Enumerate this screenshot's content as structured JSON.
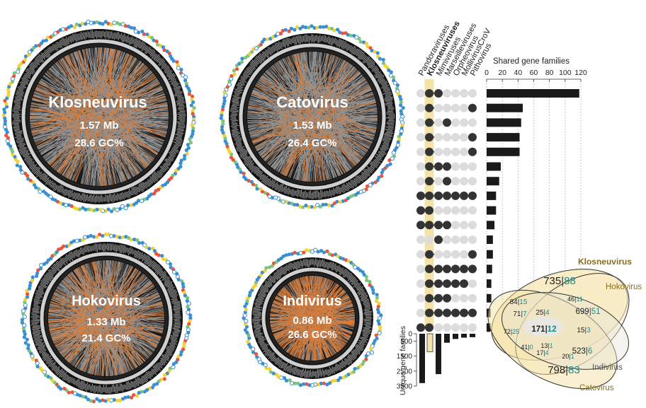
{
  "chart_data": [
    {
      "type": "other",
      "subtype": "circular-genome-maps",
      "genomes": [
        {
          "name": "Klosneuvirus",
          "size": "1.57 Mb",
          "gc": "28.6 GC%"
        },
        {
          "name": "Catovirus",
          "size": "1.53 Mb",
          "gc": "26.4 GC%"
        },
        {
          "name": "Hokovirus",
          "size": "1.33 Mb",
          "gc": "21.4 GC%"
        },
        {
          "name": "Indivirus",
          "size": "0.86 Mb",
          "gc": "26.6 GC%"
        }
      ]
    },
    {
      "type": "bar",
      "subtype": "upset",
      "set_labels": [
        "Pithovirus",
        "MollivirusCroV",
        "Orpheovirus",
        "Marseilleviruses",
        "Mimiviruses",
        "Klosneuviruses",
        "Pandoraviruses"
      ],
      "bold_set": "Klosneuviruses",
      "shared_title": "Shared gene families",
      "shared_ticks": [
        "0",
        "20",
        "40",
        "60",
        "80",
        "100",
        "120"
      ],
      "shared_xlim": [
        0,
        120
      ],
      "shared_values": [
        118,
        46,
        44,
        42,
        42,
        18,
        16,
        12,
        12,
        10,
        8,
        8,
        7,
        6,
        6,
        5,
        5
      ],
      "membership": [
        [
          0,
          0,
          0,
          0,
          1,
          1,
          0
        ],
        [
          1,
          0,
          0,
          0,
          0,
          1,
          0
        ],
        [
          0,
          0,
          0,
          1,
          0,
          1,
          0
        ],
        [
          1,
          0,
          0,
          0,
          0,
          1,
          0
        ],
        [
          1,
          0,
          0,
          0,
          0,
          1,
          0
        ],
        [
          0,
          0,
          0,
          1,
          1,
          1,
          0
        ],
        [
          0,
          0,
          0,
          1,
          0,
          1,
          0
        ],
        [
          1,
          1,
          1,
          1,
          1,
          1,
          1
        ],
        [
          0,
          0,
          0,
          0,
          0,
          1,
          1
        ],
        [
          0,
          0,
          0,
          1,
          1,
          1,
          1
        ],
        [
          0,
          0,
          0,
          0,
          1,
          0,
          0
        ],
        [
          1,
          0,
          0,
          0,
          0,
          1,
          0
        ],
        [
          1,
          1,
          1,
          1,
          1,
          1,
          0
        ],
        [
          0,
          1,
          1,
          1,
          1,
          1,
          0
        ],
        [
          0,
          0,
          0,
          1,
          1,
          1,
          0
        ],
        [
          1,
          1,
          1,
          1,
          1,
          1,
          0
        ],
        [
          0,
          0,
          0,
          0,
          0,
          1,
          1
        ]
      ],
      "unique_title": "Unique gene families",
      "unique_ticks": [
        "0",
        "500",
        "1500",
        "2500",
        "3500"
      ],
      "unique_ylim": [
        0,
        3500
      ],
      "unique_values": [
        3300,
        1200,
        2700,
        600,
        350,
        260,
        230
      ],
      "highlight_color": "#f3e3a8"
    },
    {
      "type": "other",
      "subtype": "venn",
      "sets": [
        {
          "name": "Klosneuvirus",
          "color": "#8a6d1c"
        },
        {
          "name": "Hokovirus",
          "color": "#8a6d1c"
        },
        {
          "name": "Indivirus",
          "color": "#555555"
        },
        {
          "name": "Catovirus",
          "color": "#8a6d1c"
        }
      ],
      "regions": [
        {
          "a": "735",
          "b": "88"
        },
        {
          "a": "699",
          "b": "51"
        },
        {
          "a": "523",
          "b": "6"
        },
        {
          "a": "798",
          "b": "83"
        },
        {
          "a": "84",
          "b": "15"
        },
        {
          "a": "46",
          "b": "11"
        },
        {
          "a": "71",
          "b": "7"
        },
        {
          "a": "25",
          "b": "4"
        },
        {
          "a": "72",
          "b": "25"
        },
        {
          "a": "171",
          "b": "12"
        },
        {
          "a": "15",
          "b": "3"
        },
        {
          "a": "41",
          "b": "0"
        },
        {
          "a": "17",
          "b": "4"
        },
        {
          "a": "13",
          "b": "1"
        },
        {
          "a": "20",
          "b": "1"
        }
      ]
    }
  ]
}
